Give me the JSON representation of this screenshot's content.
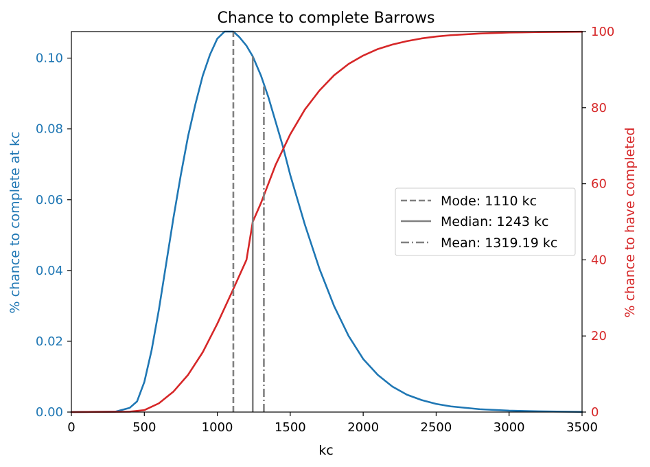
{
  "chart_data": {
    "type": "line",
    "title": "Chance to complete Barrows",
    "xlabel": "kc",
    "ylabel_left": "% chance to complete at kc",
    "ylabel_right": "% chance to have completed",
    "xlim": [
      0,
      3500
    ],
    "ylim_left": [
      0,
      0.1075
    ],
    "ylim_right": [
      0,
      100
    ],
    "x_ticks": [
      0,
      500,
      1000,
      1500,
      2000,
      2500,
      3000,
      3500
    ],
    "y_ticks_left": [
      0.0,
      0.02,
      0.04,
      0.06,
      0.08,
      0.1
    ],
    "y_ticks_left_labels": [
      "0.00",
      "0.02",
      "0.04",
      "0.06",
      "0.08",
      "0.10"
    ],
    "y_ticks_right": [
      0,
      20,
      40,
      60,
      80,
      100
    ],
    "grid": false,
    "legend_position": "center-right",
    "colors": {
      "pdf": "#1f77b4",
      "cdf": "#d62728",
      "markers": "#808080"
    },
    "series": [
      {
        "axis": "left",
        "color": "#1f77b4",
        "x": [
          0,
          300,
          400,
          450,
          500,
          550,
          600,
          650,
          700,
          750,
          800,
          850,
          900,
          950,
          1000,
          1050,
          1110,
          1150,
          1200,
          1243,
          1300,
          1350,
          1400,
          1450,
          1500,
          1600,
          1700,
          1800,
          1900,
          2000,
          2100,
          2200,
          2300,
          2400,
          2500,
          2600,
          2800,
          3000,
          3200,
          3500
        ],
        "y": [
          0,
          0.0001,
          0.0012,
          0.003,
          0.0085,
          0.0175,
          0.029,
          0.042,
          0.055,
          0.067,
          0.078,
          0.087,
          0.095,
          0.101,
          0.1055,
          0.1075,
          0.1075,
          0.106,
          0.1035,
          0.1005,
          0.095,
          0.089,
          0.082,
          0.075,
          0.067,
          0.053,
          0.0405,
          0.03,
          0.0215,
          0.015,
          0.0105,
          0.0072,
          0.0049,
          0.0034,
          0.0023,
          0.0016,
          0.0008,
          0.0004,
          0.0002,
          5e-05
        ]
      },
      {
        "axis": "right",
        "color": "#d62728",
        "x": [
          0,
          400,
          500,
          600,
          700,
          800,
          900,
          1000,
          1100,
          1200,
          1243,
          1300,
          1400,
          1500,
          1600,
          1700,
          1800,
          1900,
          2000,
          2100,
          2200,
          2300,
          2400,
          2500,
          2600,
          2800,
          3000,
          3200,
          3500
        ],
        "y": [
          0,
          0.1,
          0.5,
          2.3,
          5.4,
          9.8,
          15.7,
          23.2,
          31.5,
          40,
          50,
          55,
          65,
          73,
          79.5,
          84.5,
          88.5,
          91.5,
          93.7,
          95.4,
          96.6,
          97.5,
          98.2,
          98.7,
          99.05,
          99.5,
          99.75,
          99.88,
          99.96
        ]
      }
    ],
    "vlines": [
      {
        "label": "Mode: 1110 kc",
        "x": 1110,
        "style": "dashed",
        "top": 0.1075
      },
      {
        "label": "Median: 1243 kc",
        "x": 1243,
        "style": "solid",
        "top": 0.1005
      },
      {
        "label": "Mean: 1319.19 kc",
        "x": 1319.19,
        "style": "dashdot",
        "top": 0.0925
      }
    ]
  }
}
